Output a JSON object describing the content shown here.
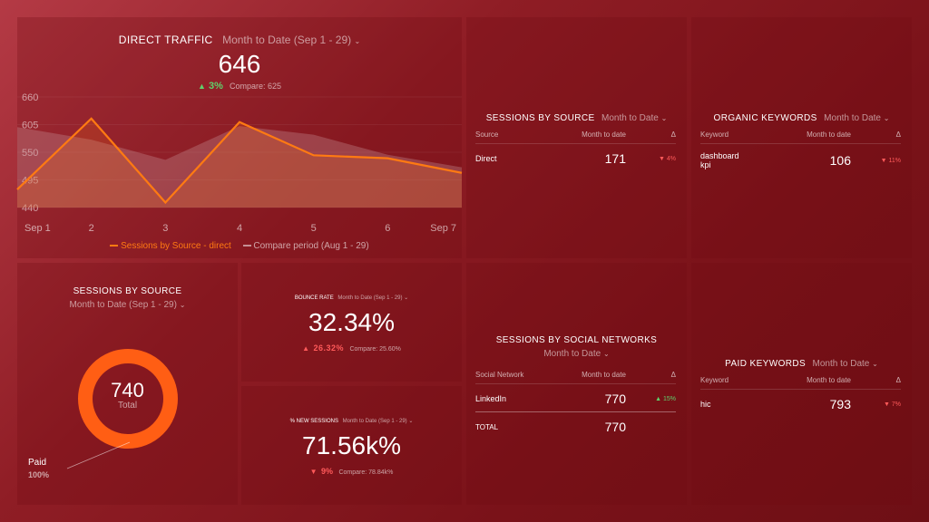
{
  "direct_traffic": {
    "title": "DIRECT TRAFFIC",
    "period": "Month to Date (Sep 1 - 29)",
    "value": "646",
    "delta_arrow": "▲",
    "delta": "3%",
    "compare": "Compare: 625",
    "legend_current": "Sessions by Source - direct",
    "legend_compare": "Compare period (Aug 1 - 29)"
  },
  "chart_data": {
    "type": "line",
    "x": [
      "Sep 1",
      "2",
      "3",
      "4",
      "5",
      "6",
      "Sep 7"
    ],
    "y_ticks": [
      "660",
      "605",
      "550",
      "495",
      "440"
    ],
    "ylim": [
      440,
      660
    ],
    "series": [
      {
        "name": "Sessions by Source - direct",
        "values": [
          476,
          617,
          450,
          610,
          544,
          538,
          509
        ]
      },
      {
        "name": "Compare period (Aug 1 - 29)",
        "values": [
          600,
          575,
          535,
          602,
          585,
          545,
          520
        ]
      }
    ],
    "legend": "bottom"
  },
  "sessions_by_source_table": {
    "title": "SESSIONS BY SOURCE",
    "period": "Month to Date",
    "headers": [
      "Source",
      "Month to date",
      "Δ"
    ],
    "rows": [
      {
        "name": "Direct",
        "value": "171",
        "arrow": "▼",
        "delta": "4%"
      }
    ]
  },
  "organic_keywords": {
    "title": "ORGANIC KEYWORDS",
    "period": "Month to Date",
    "headers": [
      "Keyword",
      "Month to date",
      "Δ"
    ],
    "rows": [
      {
        "name": "dashboard kpi",
        "value": "106",
        "arrow": "▼",
        "delta": "11%"
      }
    ]
  },
  "sessions_by_source_donut": {
    "title": "SESSIONS BY SOURCE",
    "period": "Month to Date (Sep 1 - 29)",
    "total_value": "740",
    "total_label": "Total",
    "slice_label": "Paid",
    "slice_pct": "100%",
    "slice_fraction": 1.0
  },
  "bounce_rate": {
    "title": "BOUNCE RATE",
    "period": "Month to Date (Sep 1 - 29)",
    "value": "32.34%",
    "arrow": "▲",
    "delta": "26.32%",
    "compare": "Compare: 25.60%"
  },
  "new_sessions": {
    "title": "% NEW SESSIONS",
    "period": "Month to Date (Sep 1 - 29)",
    "value": "71.56k%",
    "arrow": "▼",
    "delta": "9%",
    "compare": "Compare: 78.84k%"
  },
  "social_networks": {
    "title": "SESSIONS BY SOCIAL NETWORKS",
    "period": "Month to Date",
    "headers": [
      "Social Network",
      "Month to date",
      "Δ"
    ],
    "rows": [
      {
        "name": "LinkedIn",
        "value": "770",
        "arrow": "▲",
        "delta": "15%"
      }
    ],
    "total_label": "TOTAL",
    "total_value": "770"
  },
  "paid_keywords": {
    "title": "PAID KEYWORDS",
    "period": "Month to Date",
    "headers": [
      "Keyword",
      "Month to date",
      "Δ"
    ],
    "rows": [
      {
        "name": "hic",
        "value": "793",
        "arrow": "▼",
        "delta": "7%"
      }
    ]
  },
  "colors": {
    "line": "#ff7a12",
    "compare_area": "#c58f94",
    "donut": "#ff5e14",
    "up": "#5fd16c",
    "down": "#ff5a5a"
  },
  "icons": {
    "caret": "chevron-down-icon"
  }
}
